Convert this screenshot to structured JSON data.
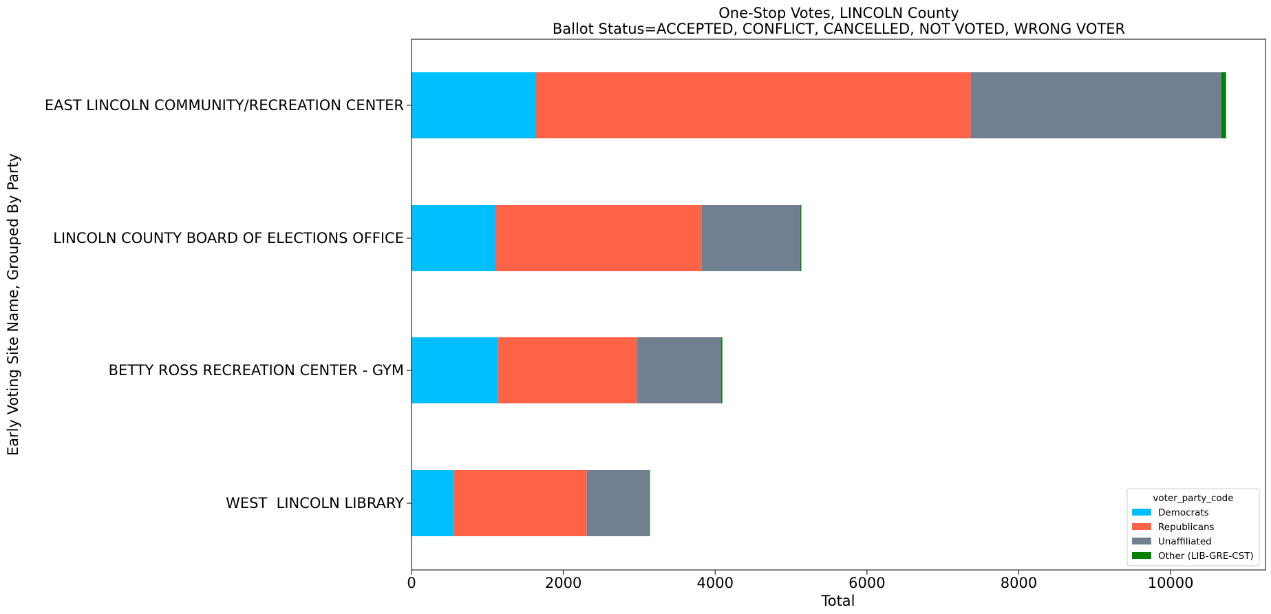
{
  "chart_data": {
    "type": "bar",
    "orientation": "horizontal",
    "stacked": true,
    "title": "One-Stop Votes, LINCOLN County",
    "subtitle": "Ballot Status=ACCEPTED, CONFLICT, CANCELLED, NOT VOTED, WRONG VOTER",
    "xlabel": "Total",
    "ylabel": "Early Voting Site Name, Grouped By Party",
    "xlim": [
      0,
      11250
    ],
    "xticks": [
      0,
      2000,
      4000,
      6000,
      8000,
      10000
    ],
    "grid": false,
    "legend_placement": "lower-right",
    "legend_title": "voter_party_code",
    "categories": [
      "EAST LINCOLN COMMUNITY/RECREATION CENTER",
      "LINCOLN COUNTY BOARD OF ELECTIONS OFFICE",
      "BETTY ROSS RECREATION CENTER - GYM",
      "WEST  LINCOLN LIBRARY"
    ],
    "series": [
      {
        "name": "Democrats",
        "color": "#00bfff",
        "values": [
          1640,
          1110,
          1140,
          560
        ]
      },
      {
        "name": "Republicans",
        "color": "#ff6347",
        "values": [
          5730,
          2710,
          1830,
          1750
        ]
      },
      {
        "name": "Unaffiliated",
        "color": "#708090",
        "values": [
          3300,
          1300,
          1110,
          820
        ]
      },
      {
        "name": "Other (LIB-GRE-CST)",
        "color": "#008000",
        "values": [
          60,
          15,
          15,
          10
        ]
      }
    ]
  }
}
